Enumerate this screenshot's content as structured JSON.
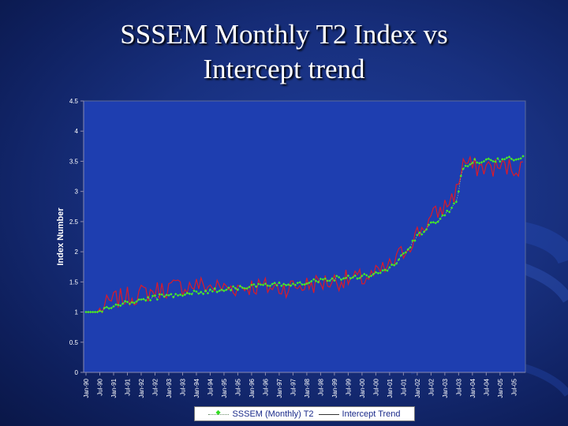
{
  "slide": {
    "title_line1": "SSSEM Monthly T2 Index vs",
    "title_line2": "Intercept trend"
  },
  "colors": {
    "background": "#18307f",
    "plot_area": "#1e3eb0",
    "index_series": "#44ee22",
    "trend_series": "#dd1a28",
    "axis_text": "#ffffff"
  },
  "chart_data": {
    "type": "line",
    "title": "",
    "xlabel": "",
    "ylabel": "Index Number",
    "ylim": [
      0,
      4.5
    ],
    "yticks": [
      0,
      0.5,
      1,
      1.5,
      2,
      2.5,
      3,
      3.5,
      4,
      4.5
    ],
    "ytick_labels": [
      "0",
      "0.5",
      "1",
      "1.5",
      "2",
      "2.5",
      "3",
      "3.5",
      "4",
      "4.5"
    ],
    "x_tick_labels": [
      "Jan-90",
      "Jul-90",
      "Jan-91",
      "Jul-91",
      "Jan-92",
      "Jul-92",
      "Jan-93",
      "Jul-93",
      "Jan-94",
      "Jul-94",
      "Jan-95",
      "Jul-95",
      "Jan-96",
      "Jul-96",
      "Jan-97",
      "Jul-97",
      "Jan-98",
      "Jul-98",
      "Jan-99",
      "Jul-99",
      "Jan-00",
      "Jul-00",
      "Jan-01",
      "Jul-01",
      "Jan-02",
      "Jul-02",
      "Jan-03",
      "Jul-03",
      "Jan-04",
      "Jul-04",
      "Jan-05",
      "Jul-05"
    ],
    "grid": false,
    "legend_position": "bottom",
    "x_start": "1990-01",
    "x_end": "2005-11",
    "series": [
      {
        "name": "SSSEM (Monthly) T2",
        "style": "dotted-diamond",
        "anchors": [
          [
            "1990-01",
            1.0
          ],
          [
            "1990-06",
            1.0
          ],
          [
            "1991-01",
            1.1
          ],
          [
            "1992-01",
            1.2
          ],
          [
            "1993-01",
            1.28
          ],
          [
            "1994-01",
            1.32
          ],
          [
            "1995-01",
            1.38
          ],
          [
            "1996-01",
            1.43
          ],
          [
            "1997-01",
            1.45
          ],
          [
            "1998-01",
            1.5
          ],
          [
            "1999-01",
            1.56
          ],
          [
            "2000-01",
            1.6
          ],
          [
            "2000-06",
            1.62
          ],
          [
            "2001-01",
            1.72
          ],
          [
            "2001-07",
            1.95
          ],
          [
            "2002-01",
            2.25
          ],
          [
            "2002-07",
            2.45
          ],
          [
            "2003-01",
            2.6
          ],
          [
            "2003-06",
            2.85
          ],
          [
            "2003-09",
            3.4
          ],
          [
            "2004-01",
            3.5
          ],
          [
            "2005-11",
            3.55
          ]
        ],
        "jitter": 0.04
      },
      {
        "name": "Intercept Trend",
        "style": "solid",
        "anchors": [
          [
            "1990-01",
            1.0
          ],
          [
            "1990-06",
            1.0
          ],
          [
            "1991-01",
            1.2
          ],
          [
            "1992-01",
            1.3
          ],
          [
            "1993-01",
            1.4
          ],
          [
            "1994-01",
            1.45
          ],
          [
            "1995-01",
            1.4
          ],
          [
            "1996-01",
            1.43
          ],
          [
            "1997-01",
            1.4
          ],
          [
            "1998-01",
            1.45
          ],
          [
            "1999-01",
            1.52
          ],
          [
            "2000-01",
            1.55
          ],
          [
            "2000-06",
            1.6
          ],
          [
            "2001-01",
            1.75
          ],
          [
            "2001-07",
            2.0
          ],
          [
            "2002-01",
            2.3
          ],
          [
            "2002-07",
            2.55
          ],
          [
            "2003-01",
            2.75
          ],
          [
            "2003-06",
            3.0
          ],
          [
            "2003-09",
            3.5
          ],
          [
            "2004-01",
            3.4
          ],
          [
            "2005-11",
            3.4
          ]
        ],
        "jitter": 0.17
      }
    ]
  },
  "legend": {
    "index_label": "SSSEM (Monthly) T2",
    "trend_label": "Intercept Trend"
  }
}
